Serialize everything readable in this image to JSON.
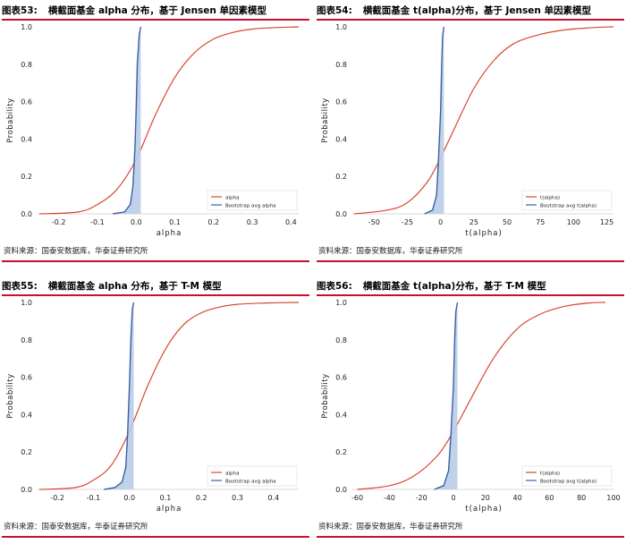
{
  "panels": [
    {
      "figure_label": "图表53:",
      "title": "横截面基金 alpha 分布，基于 Jensen 单因素模型",
      "source": "资料来源：国泰安数据库，华泰证券研究所"
    },
    {
      "figure_label": "图表54:",
      "title": "横截面基金 t(alpha)分布，基于 Jensen 单因素模型",
      "source": "资料来源：国泰安数据库，华泰证券研究所"
    },
    {
      "figure_label": "图表55:",
      "title": "横截面基金 alpha 分布，基于 T-M 模型",
      "source": "资料来源：国泰安数据库，华泰证券研究所"
    },
    {
      "figure_label": "图表56:",
      "title": "横截面基金 t(alpha)分布，基于 T-M 模型",
      "source": "资料来源：国泰安数据库，华泰证券研究所"
    }
  ],
  "colors": {
    "actual_line": "#d9462f",
    "bootstrap_line": "#3b5fa8",
    "bootstrap_fill": "#b9cce8",
    "rule": "#c8102e"
  },
  "chart_data": [
    {
      "type": "line",
      "xlabel": "alpha",
      "ylabel": "Probability",
      "xlim": [
        -0.25,
        0.42
      ],
      "ylim": [
        0,
        1.0
      ],
      "xticks": [
        -0.2,
        -0.1,
        0.0,
        0.1,
        0.2,
        0.3,
        0.4
      ],
      "xtick_labels": [
        "-0.2",
        "-0.1",
        "0.0",
        "0.1",
        "0.2",
        "0.3",
        "0.4"
      ],
      "yticks": [
        0,
        0.2,
        0.4,
        0.6,
        0.8,
        1.0
      ],
      "ytick_labels": [
        "0.0",
        "0.2",
        "0.4",
        "0.6",
        "0.8",
        "1.0"
      ],
      "legend_position": "bottom-right",
      "series": [
        {
          "name": "alpha",
          "kind": "cdf",
          "x": [
            -0.25,
            -0.15,
            -0.1,
            -0.05,
            0.0,
            0.05,
            0.1,
            0.15,
            0.2,
            0.25,
            0.3,
            0.35,
            0.42
          ],
          "y": [
            0.0,
            0.01,
            0.05,
            0.13,
            0.29,
            0.53,
            0.73,
            0.86,
            0.935,
            0.97,
            0.988,
            0.995,
            1.0
          ]
        },
        {
          "name": "Bootstrap avg alpha",
          "kind": "cdf_filled",
          "x": [
            -0.06,
            -0.03,
            -0.015,
            -0.008,
            -0.003,
            0.0,
            0.003,
            0.008,
            0.012
          ],
          "y": [
            0.0,
            0.01,
            0.05,
            0.15,
            0.35,
            0.55,
            0.8,
            0.96,
            1.0
          ]
        }
      ]
    },
    {
      "type": "line",
      "xlabel": "t(alpha)",
      "ylabel": "Probability",
      "xlim": [
        -65,
        130
      ],
      "ylim": [
        0,
        1.0
      ],
      "xticks": [
        -50,
        -25,
        0,
        25,
        50,
        75,
        100,
        125
      ],
      "xtick_labels": [
        "-50",
        "-25",
        "0",
        "25",
        "50",
        "75",
        "100",
        "125"
      ],
      "yticks": [
        0,
        0.2,
        0.4,
        0.6,
        0.8,
        1.0
      ],
      "ytick_labels": [
        "0.0",
        "0.2",
        "0.4",
        "0.6",
        "0.8",
        "1.0"
      ],
      "legend_position": "bottom-right",
      "series": [
        {
          "name": "t(alpha)",
          "kind": "cdf",
          "x": [
            -65,
            -40,
            -25,
            -10,
            0,
            10,
            25,
            40,
            55,
            75,
            95,
            115,
            130
          ],
          "y": [
            0.0,
            0.02,
            0.06,
            0.17,
            0.3,
            0.45,
            0.67,
            0.82,
            0.91,
            0.96,
            0.985,
            0.996,
            1.0
          ]
        },
        {
          "name": "Bootstrap avg t(alpha)",
          "kind": "cdf_filled",
          "x": [
            -12,
            -6,
            -3,
            -1.5,
            0,
            0.8,
            1.5,
            2.5
          ],
          "y": [
            0.0,
            0.02,
            0.1,
            0.3,
            0.55,
            0.8,
            0.95,
            1.0
          ]
        }
      ]
    },
    {
      "type": "line",
      "xlabel": "alpha",
      "ylabel": "Probability",
      "xlim": [
        -0.25,
        0.47
      ],
      "ylim": [
        0,
        1.0
      ],
      "xticks": [
        -0.2,
        -0.1,
        0.0,
        0.1,
        0.2,
        0.3,
        0.4
      ],
      "xtick_labels": [
        "-0.2",
        "-0.1",
        "0.0",
        "0.1",
        "0.2",
        "0.3",
        "0.4"
      ],
      "yticks": [
        0,
        0.2,
        0.4,
        0.6,
        0.8,
        1.0
      ],
      "ytick_labels": [
        "0.0",
        "0.2",
        "0.4",
        "0.6",
        "0.8",
        "1.0"
      ],
      "legend_position": "bottom-right",
      "series": [
        {
          "name": "alpha",
          "kind": "cdf",
          "x": [
            -0.25,
            -0.15,
            -0.1,
            -0.05,
            0.0,
            0.05,
            0.1,
            0.15,
            0.2,
            0.25,
            0.3,
            0.38,
            0.47
          ],
          "y": [
            0.0,
            0.01,
            0.05,
            0.13,
            0.31,
            0.55,
            0.75,
            0.88,
            0.945,
            0.975,
            0.99,
            0.997,
            1.0
          ]
        },
        {
          "name": "Bootstrap avg alpha",
          "kind": "cdf_filled",
          "x": [
            -0.07,
            -0.04,
            -0.02,
            -0.01,
            -0.005,
            0.0,
            0.004,
            0.008,
            0.012
          ],
          "y": [
            0.0,
            0.01,
            0.04,
            0.12,
            0.3,
            0.55,
            0.8,
            0.96,
            1.0
          ]
        }
      ]
    },
    {
      "type": "line",
      "xlabel": "t(alpha)",
      "ylabel": "Probability",
      "xlim": [
        -62,
        100
      ],
      "ylim": [
        0,
        1.0
      ],
      "xticks": [
        -60,
        -40,
        -20,
        0,
        20,
        40,
        60,
        80,
        100
      ],
      "xtick_labels": [
        "-60",
        "-40",
        "-20",
        "0",
        "20",
        "40",
        "60",
        "80",
        "100"
      ],
      "yticks": [
        0,
        0.2,
        0.4,
        0.6,
        0.8,
        1.0
      ],
      "ytick_labels": [
        "0.0",
        "0.2",
        "0.4",
        "0.6",
        "0.8",
        "1.0"
      ],
      "legend_position": "bottom-right",
      "series": [
        {
          "name": "t(alpha)",
          "kind": "cdf",
          "x": [
            -60,
            -40,
            -25,
            -10,
            0,
            10,
            25,
            40,
            55,
            70,
            85,
            95
          ],
          "y": [
            0.0,
            0.02,
            0.07,
            0.18,
            0.31,
            0.47,
            0.7,
            0.86,
            0.94,
            0.98,
            0.997,
            1.0
          ]
        },
        {
          "name": "Bootstrap avg t(alpha)",
          "kind": "cdf_filled",
          "x": [
            -12,
            -6,
            -3,
            -1.5,
            0,
            0.8,
            1.5,
            2.5
          ],
          "y": [
            0.0,
            0.02,
            0.1,
            0.3,
            0.55,
            0.8,
            0.95,
            1.0
          ]
        }
      ]
    }
  ]
}
